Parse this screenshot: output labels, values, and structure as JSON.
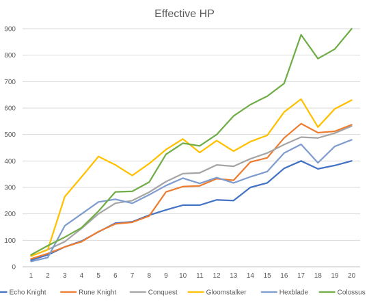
{
  "chart_data": {
    "type": "line",
    "title": "Effective HP",
    "xlabel": "",
    "ylabel": "",
    "x": [
      1,
      2,
      3,
      4,
      5,
      6,
      7,
      8,
      9,
      10,
      11,
      12,
      13,
      14,
      15,
      16,
      17,
      18,
      19,
      20
    ],
    "ylim": [
      0,
      900
    ],
    "yticks": [
      0,
      100,
      200,
      300,
      400,
      500,
      600,
      700,
      800,
      900
    ],
    "grid": true,
    "legend_position": "bottom",
    "series": [
      {
        "name": "Echo Knight",
        "color": "#4472c4",
        "values": [
          25,
          45,
          75,
          97,
          132,
          165,
          170,
          195,
          215,
          233,
          233,
          253,
          250,
          300,
          317,
          372,
          400,
          370,
          383,
          400
        ]
      },
      {
        "name": "Rune Knight",
        "color": "#ed7d31",
        "values": [
          30,
          50,
          75,
          95,
          133,
          162,
          168,
          192,
          283,
          303,
          306,
          333,
          327,
          396,
          412,
          487,
          541,
          507,
          512,
          537
        ]
      },
      {
        "name": "Conquest",
        "color": "#a5a5a5",
        "values": [
          40,
          65,
          95,
          145,
          200,
          240,
          250,
          282,
          322,
          352,
          355,
          385,
          380,
          408,
          430,
          462,
          490,
          487,
          505,
          532
        ]
      },
      {
        "name": "Gloomstalker",
        "color": "#ffc000",
        "values": [
          40,
          65,
          265,
          340,
          417,
          385,
          345,
          390,
          443,
          483,
          432,
          477,
          437,
          473,
          497,
          585,
          634,
          528,
          597,
          630
        ]
      },
      {
        "name": "Hexblade",
        "color": "#7f9ccf",
        "values": [
          20,
          35,
          155,
          200,
          245,
          255,
          240,
          272,
          307,
          335,
          315,
          337,
          317,
          340,
          360,
          430,
          463,
          393,
          455,
          480
        ]
      },
      {
        "name": "Colossus",
        "color": "#70ad47",
        "values": [
          45,
          80,
          112,
          148,
          210,
          283,
          285,
          320,
          425,
          467,
          457,
          500,
          570,
          613,
          645,
          693,
          877,
          787,
          823,
          900
        ]
      }
    ]
  }
}
